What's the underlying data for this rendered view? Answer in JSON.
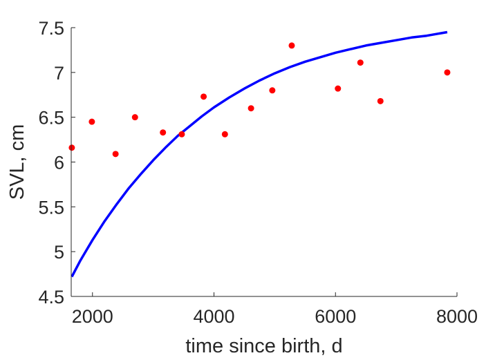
{
  "chart_data": {
    "type": "scatter",
    "title": "",
    "xlabel": "time since birth, d",
    "ylabel": "SVL, cm",
    "xlim": [
      1650,
      8000
    ],
    "ylim": [
      4.5,
      7.5
    ],
    "xticks": [
      2000,
      4000,
      6000,
      8000
    ],
    "xtick_labels": [
      "2000",
      "4000",
      "6000",
      "8000"
    ],
    "yticks": [
      4.5,
      5,
      5.5,
      6,
      6.5,
      7,
      7.5
    ],
    "ytick_labels": [
      "4.5",
      "5",
      "5.5",
      "6",
      "6.5",
      "7",
      "7.5"
    ],
    "grid": false,
    "legend": "none",
    "series": [
      {
        "kind": "points",
        "color": "#ff0000",
        "x": [
          1660,
          1990,
          2380,
          2700,
          3160,
          3470,
          3830,
          4180,
          4610,
          4960,
          5280,
          6040,
          6410,
          6740,
          7840
        ],
        "y": [
          6.16,
          6.45,
          6.09,
          6.5,
          6.33,
          6.31,
          6.73,
          6.31,
          6.6,
          6.8,
          7.3,
          6.82,
          7.11,
          6.68,
          7.0
        ]
      },
      {
        "kind": "curve",
        "color": "#0000ff",
        "x": [
          1660,
          1800,
          2000,
          2200,
          2400,
          2600,
          2800,
          3000,
          3200,
          3400,
          3600,
          3800,
          4000,
          4250,
          4500,
          4750,
          5000,
          5250,
          5500,
          5750,
          6000,
          6250,
          6500,
          6750,
          7000,
          7250,
          7500,
          7840
        ],
        "y": [
          4.72,
          4.9,
          5.13,
          5.34,
          5.53,
          5.71,
          5.87,
          6.02,
          6.16,
          6.29,
          6.4,
          6.51,
          6.61,
          6.72,
          6.82,
          6.91,
          6.99,
          7.06,
          7.12,
          7.17,
          7.22,
          7.26,
          7.3,
          7.33,
          7.36,
          7.39,
          7.41,
          7.45
        ]
      }
    ]
  }
}
